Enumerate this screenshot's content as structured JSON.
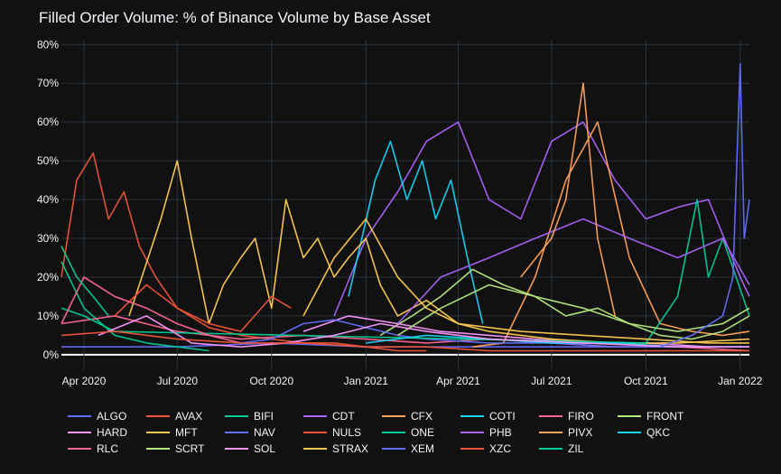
{
  "chart_data": {
    "type": "line",
    "title": "Filled Order Volume: % of Binance Volume by Base Asset",
    "xlabel": "",
    "ylabel": "",
    "x_range": [
      "2020-03-10",
      "2022-01-10"
    ],
    "ylim": [
      -4,
      81
    ],
    "y_unit": "%",
    "grid": true,
    "legend_position": "bottom",
    "y_ticks": [
      0,
      10,
      20,
      30,
      40,
      50,
      60,
      70,
      80
    ],
    "y_tick_labels": [
      "0%",
      "10%",
      "20%",
      "30%",
      "40%",
      "50%",
      "60%",
      "70%",
      "80%"
    ],
    "x_ticks": [
      "2020-04-01",
      "2020-07-01",
      "2020-10-01",
      "2021-01-01",
      "2021-04-01",
      "2021-07-01",
      "2021-10-01",
      "2022-01-01"
    ],
    "x_tick_labels": [
      "Apr 2020",
      "Jul 2020",
      "Oct 2020",
      "Jan 2021",
      "Apr 2021",
      "Jul 2021",
      "Oct 2021",
      "Jan 2022"
    ],
    "series": [
      {
        "name": "ALGO",
        "color": "#636efa",
        "x": [
          "2020-03-10",
          "2020-07-01",
          "2020-10-01",
          "2021-01-01",
          "2021-04-01",
          "2021-07-01",
          "2021-10-01",
          "2022-01-10"
        ],
        "values": [
          2,
          2,
          3,
          2,
          2,
          2,
          2,
          2
        ]
      },
      {
        "name": "AVAX",
        "color": "#ef553b",
        "x": [
          "2020-03-10",
          "2020-03-25",
          "2020-04-10",
          "2020-04-25",
          "2020-05-10",
          "2020-05-25",
          "2020-06-10",
          "2020-07-01",
          "2020-08-01",
          "2020-09-01",
          "2020-10-01",
          "2020-11-01",
          "2020-12-01",
          "2021-01-01",
          "2021-02-01",
          "2021-03-01"
        ],
        "values": [
          20,
          45,
          52,
          35,
          42,
          28,
          20,
          12,
          7,
          5,
          4,
          3,
          3,
          2,
          1,
          1
        ]
      },
      {
        "name": "BIFI",
        "color": "#00cc96",
        "x": [
          "2020-03-10",
          "2020-04-01",
          "2020-05-01",
          "2020-06-01",
          "2020-07-01",
          "2020-08-01"
        ],
        "values": [
          24,
          12,
          5,
          3,
          2,
          1
        ]
      },
      {
        "name": "CDT",
        "color": "#ab63fa",
        "x": [
          "2020-12-01",
          "2021-01-01",
          "2021-02-01",
          "2021-03-01",
          "2021-04-01",
          "2021-05-01",
          "2021-06-01",
          "2021-07-01",
          "2021-08-01",
          "2021-09-01",
          "2021-10-01",
          "2021-11-01",
          "2021-12-01",
          "2022-01-01",
          "2022-01-10"
        ],
        "values": [
          10,
          30,
          42,
          55,
          60,
          40,
          35,
          55,
          60,
          45,
          35,
          38,
          40,
          20,
          15
        ]
      },
      {
        "name": "CFX",
        "color": "#ffa15a",
        "x": [
          "2021-04-15",
          "2021-05-15",
          "2021-06-15",
          "2021-07-15",
          "2021-08-15",
          "2021-09-15",
          "2021-10-15",
          "2021-11-15",
          "2021-12-15",
          "2022-01-10"
        ],
        "values": [
          2,
          3,
          20,
          45,
          60,
          25,
          8,
          6,
          5,
          6
        ]
      },
      {
        "name": "COTI",
        "color": "#19d3f3",
        "x": [
          "2020-12-15",
          "2021-01-10",
          "2021-01-25",
          "2021-02-10",
          "2021-02-25",
          "2021-03-10",
          "2021-03-25",
          "2021-04-10",
          "2021-04-25"
        ],
        "values": [
          15,
          45,
          55,
          40,
          50,
          35,
          45,
          25,
          8
        ]
      },
      {
        "name": "FIRO",
        "color": "#ff6692",
        "x": [
          "2020-03-10",
          "2020-05-01",
          "2020-07-01",
          "2020-09-01",
          "2020-11-01",
          "2021-01-01",
          "2021-03-01",
          "2021-05-01",
          "2021-07-01",
          "2021-09-01",
          "2021-11-01",
          "2022-01-10"
        ],
        "values": [
          8,
          10,
          6,
          4,
          5,
          4,
          3,
          4,
          3,
          2,
          2,
          1
        ]
      },
      {
        "name": "FRONT",
        "color": "#b6e880",
        "x": [
          "2021-01-15",
          "2021-02-15",
          "2021-03-15",
          "2021-04-15",
          "2021-05-15",
          "2021-06-15",
          "2021-07-15",
          "2021-08-15",
          "2021-09-15",
          "2021-10-15",
          "2021-11-15",
          "2021-12-15",
          "2022-01-10"
        ],
        "values": [
          5,
          10,
          15,
          22,
          18,
          15,
          10,
          12,
          8,
          5,
          4,
          6,
          10
        ]
      },
      {
        "name": "HARD",
        "color": "#ff97ff",
        "x": [
          "2020-11-01",
          "2020-12-15",
          "2021-02-01",
          "2021-03-15",
          "2021-05-01",
          "2021-06-15",
          "2021-08-01",
          "2021-10-01",
          "2021-12-01",
          "2022-01-10"
        ],
        "values": [
          6,
          10,
          8,
          6,
          5,
          4,
          3,
          3,
          2,
          2
        ]
      },
      {
        "name": "MFT",
        "color": "#fecb52",
        "x": [
          "2020-05-15",
          "2020-06-15",
          "2020-07-01",
          "2020-07-15",
          "2020-08-01",
          "2020-08-15",
          "2020-09-01",
          "2020-09-15",
          "2020-10-01",
          "2020-10-15",
          "2020-11-01",
          "2020-11-15",
          "2020-12-01",
          "2020-12-15",
          "2021-01-01",
          "2021-01-15",
          "2021-02-01",
          "2021-03-01",
          "2021-04-01",
          "2021-05-01",
          "2021-07-01",
          "2021-09-01",
          "2021-11-01",
          "2022-01-10"
        ],
        "values": [
          10,
          35,
          50,
          30,
          8,
          18,
          25,
          30,
          12,
          40,
          25,
          30,
          20,
          25,
          30,
          18,
          10,
          14,
          8,
          6,
          4,
          3,
          3,
          4
        ]
      },
      {
        "name": "NAV",
        "color": "#636efa",
        "x": [
          "2020-09-01",
          "2020-10-01",
          "2020-11-01",
          "2020-12-01",
          "2021-01-01",
          "2021-02-01",
          "2021-03-01",
          "2021-05-01",
          "2021-07-01",
          "2021-09-01",
          "2021-11-01",
          "2022-01-10"
        ],
        "values": [
          3,
          4,
          8,
          9,
          7,
          5,
          4,
          3,
          3,
          2,
          2,
          2
        ]
      },
      {
        "name": "NULS",
        "color": "#ef553b",
        "x": [
          "2020-05-01",
          "2020-06-01",
          "2020-07-01",
          "2020-08-01",
          "2020-09-01",
          "2020-10-01",
          "2020-10-20"
        ],
        "values": [
          10,
          18,
          12,
          8,
          6,
          15,
          12
        ]
      },
      {
        "name": "ONE",
        "color": "#00cc96",
        "x": [
          "2020-03-10",
          "2020-04-01",
          "2020-05-01",
          "2021-10-01",
          "2021-11-01",
          "2021-11-20",
          "2021-12-01",
          "2021-12-15",
          "2022-01-10"
        ],
        "values": [
          12,
          10,
          6,
          3,
          15,
          40,
          20,
          30,
          10
        ]
      },
      {
        "name": "PHB",
        "color": "#ab63fa",
        "x": [
          "2021-02-01",
          "2021-03-15",
          "2021-05-01",
          "2021-06-15",
          "2021-08-01",
          "2021-09-15",
          "2021-11-01",
          "2021-12-15",
          "2022-01-10"
        ],
        "values": [
          8,
          20,
          25,
          30,
          35,
          30,
          25,
          30,
          18
        ]
      },
      {
        "name": "PIVX",
        "color": "#ffa15a",
        "x": [
          "2021-06-01",
          "2021-07-01",
          "2021-07-15",
          "2021-08-01",
          "2021-08-15",
          "2021-09-01"
        ],
        "values": [
          20,
          30,
          40,
          70,
          30,
          10
        ]
      },
      {
        "name": "QKC",
        "color": "#19d3f3",
        "x": [
          "2021-01-01",
          "2021-03-01",
          "2021-05-01",
          "2021-07-01",
          "2021-09-01",
          "2021-11-01",
          "2022-01-10"
        ],
        "values": [
          3,
          5,
          4,
          3,
          3,
          2,
          2
        ]
      },
      {
        "name": "RLC",
        "color": "#ff6692",
        "x": [
          "2020-03-10",
          "2020-04-01",
          "2020-05-01",
          "2020-06-01",
          "2020-07-01",
          "2020-08-01",
          "2020-09-01"
        ],
        "values": [
          8,
          20,
          15,
          12,
          8,
          5,
          3
        ]
      },
      {
        "name": "SCRT",
        "color": "#b6e880",
        "x": [
          "2021-02-01",
          "2021-03-15",
          "2021-05-01",
          "2021-06-15",
          "2021-08-01",
          "2021-09-15",
          "2021-11-01",
          "2021-12-15",
          "2022-01-10"
        ],
        "values": [
          5,
          12,
          18,
          15,
          12,
          8,
          6,
          8,
          12
        ]
      },
      {
        "name": "SOL",
        "color": "#ff97ff",
        "x": [
          "2020-04-15",
          "2020-06-01",
          "2020-07-15",
          "2020-09-01",
          "2020-10-15",
          "2020-12-01",
          "2021-01-15",
          "2021-03-01",
          "2021-05-01",
          "2021-08-01",
          "2021-11-01",
          "2022-01-10"
        ],
        "values": [
          5,
          10,
          3,
          2,
          3,
          5,
          8,
          6,
          4,
          3,
          2,
          2
        ]
      },
      {
        "name": "STRAX",
        "color": "#fecb52",
        "x": [
          "2020-11-01",
          "2020-12-01",
          "2021-01-01",
          "2021-02-01",
          "2021-03-01",
          "2021-04-01",
          "2021-06-01",
          "2021-08-01",
          "2021-10-01",
          "2021-12-01",
          "2022-01-10"
        ],
        "values": [
          10,
          25,
          35,
          20,
          12,
          8,
          6,
          5,
          4,
          3,
          3
        ]
      },
      {
        "name": "XEM",
        "color": "#636efa",
        "x": [
          "2021-10-15",
          "2021-11-15",
          "2021-12-15",
          "2021-12-25",
          "2022-01-01",
          "2022-01-05",
          "2022-01-10"
        ],
        "values": [
          2,
          5,
          10,
          20,
          75,
          30,
          40
        ]
      },
      {
        "name": "XZC",
        "color": "#ef553b",
        "x": [
          "2020-03-10",
          "2020-05-01",
          "2020-07-01",
          "2020-09-01",
          "2020-11-01",
          "2021-01-01",
          "2021-03-01",
          "2021-05-01",
          "2021-07-01",
          "2021-09-01",
          "2021-11-01",
          "2022-01-10"
        ],
        "values": [
          5,
          6,
          4,
          3,
          3,
          2,
          2,
          1,
          1,
          1,
          1,
          1
        ]
      },
      {
        "name": "ZIL",
        "color": "#00cc96",
        "x": [
          "2020-03-10",
          "2020-03-25",
          "2020-04-10",
          "2020-04-25"
        ],
        "values": [
          28,
          20,
          15,
          10
        ]
      }
    ]
  }
}
